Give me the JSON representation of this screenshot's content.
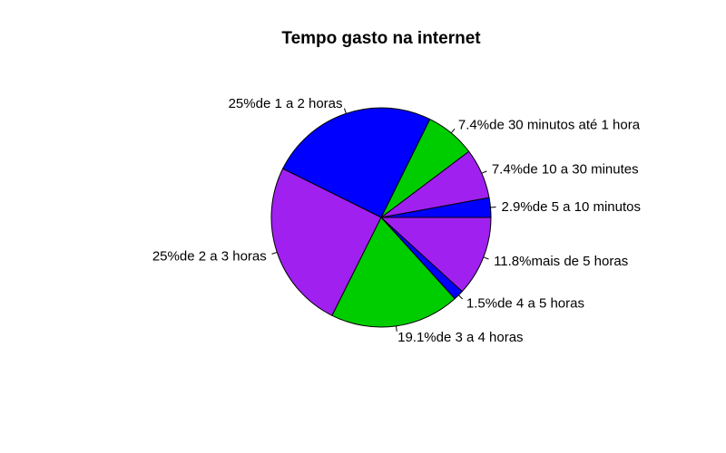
{
  "chart_data": {
    "type": "pie",
    "title": "Tempo gasto na internet",
    "slices": [
      {
        "label": "2.9%de 5 a 10 minutos",
        "value": 2.9,
        "color": "#0000FF"
      },
      {
        "label": "7.4%de 10 a 30 minutes",
        "value": 7.4,
        "color": "#A020F0"
      },
      {
        "label": "7.4%de 30 minutos até 1 hora",
        "value": 7.4,
        "color": "#00CD00"
      },
      {
        "label": "25%de 1 a 2 horas",
        "value": 25,
        "color": "#0000FF"
      },
      {
        "label": "25%de 2 a 3 horas",
        "value": 25,
        "color": "#A020F0"
      },
      {
        "label": "19.1%de 3 a 4 horas",
        "value": 19.1,
        "color": "#00CD00"
      },
      {
        "label": "1.5%de 4 a 5 horas",
        "value": 1.5,
        "color": "#0000FF"
      },
      {
        "label": "11.8%mais de 5 horas",
        "value": 11.8,
        "color": "#A020F0"
      }
    ],
    "start_angle_deg": 0,
    "direction": "counterclockwise",
    "legend": "none"
  }
}
